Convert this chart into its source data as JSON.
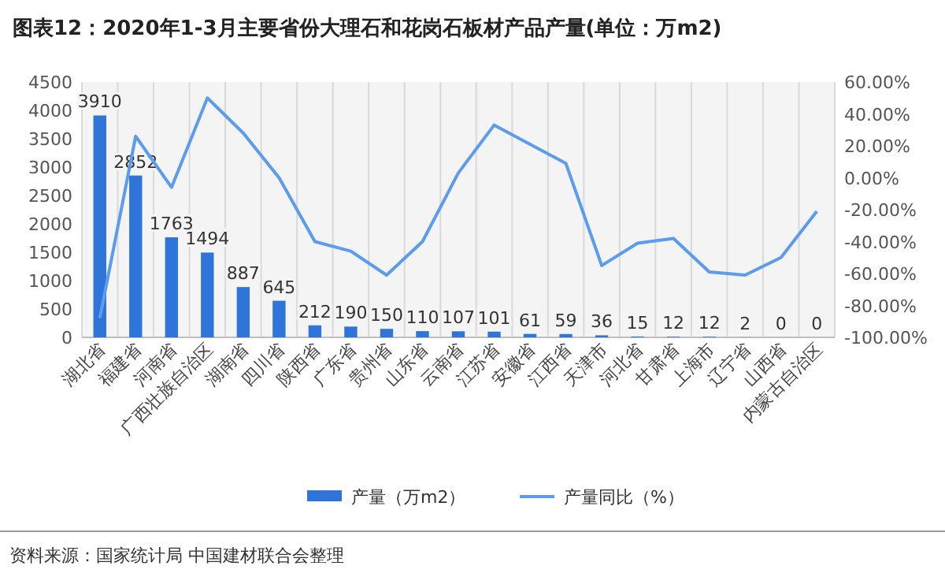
{
  "chart_data": {
    "type": "bar",
    "title": "图表12：2020年1-3月主要省份大理石和花岗石板材产品产量(单位：万m2)",
    "categories": [
      "湖北省",
      "福建省",
      "河南省",
      "广西壮族自治区",
      "湖南省",
      "四川省",
      "陕西省",
      "广东省",
      "贵州省",
      "山东省",
      "云南省",
      "江苏省",
      "安徽省",
      "江西省",
      "天津市",
      "河北省",
      "甘肃省",
      "上海市",
      "辽宁省",
      "山西省",
      "内蒙古自治区"
    ],
    "series": [
      {
        "name": "产量（万m2）",
        "color": "#2f74d9",
        "values": [
          3910,
          2852,
          1763,
          1494,
          887,
          645,
          212,
          190,
          150,
          110,
          107,
          101,
          61,
          59,
          36,
          15,
          12,
          12,
          2,
          0,
          0
        ],
        "value_labels": [
          "3910",
          "2852",
          "1763",
          "1494",
          "887",
          "645",
          "212",
          "190",
          "150",
          "110",
          "107",
          "101",
          "61",
          "59",
          "36",
          "15",
          "12",
          "12",
          "2",
          "0",
          "0"
        ]
      },
      {
        "name": "产量同比（%）",
        "type": "line",
        "axis": "y2",
        "color": "#5b9bf0",
        "values": [
          -88,
          26,
          -6,
          50,
          28,
          0,
          -40,
          -46,
          -61,
          -40,
          3,
          33,
          21,
          9,
          -55,
          -41,
          -38,
          -59,
          -61,
          -50,
          -21
        ]
      }
    ],
    "ylim": [
      0,
      4500
    ],
    "yticks": [
      0,
      500,
      1000,
      1500,
      2000,
      2500,
      3000,
      3500,
      4000,
      4500
    ],
    "y2lim": [
      -100,
      60
    ],
    "y2ticks": [
      {
        "value": -100,
        "label": "-100.00%"
      },
      {
        "value": -80,
        "label": "-80.00%"
      },
      {
        "value": -60,
        "label": "-60.00%"
      },
      {
        "value": -40,
        "label": "-40.00%"
      },
      {
        "value": -20,
        "label": "-20.00%"
      },
      {
        "value": 0,
        "label": "0.00%"
      },
      {
        "value": 20,
        "label": "20.00%"
      },
      {
        "value": 40,
        "label": "40.00%"
      },
      {
        "value": 60,
        "label": "60.00%"
      }
    ],
    "grid": "x",
    "legend": "bottom",
    "annotations": [
      "资料来源：国家统计局 中国建材联合会整理"
    ]
  }
}
